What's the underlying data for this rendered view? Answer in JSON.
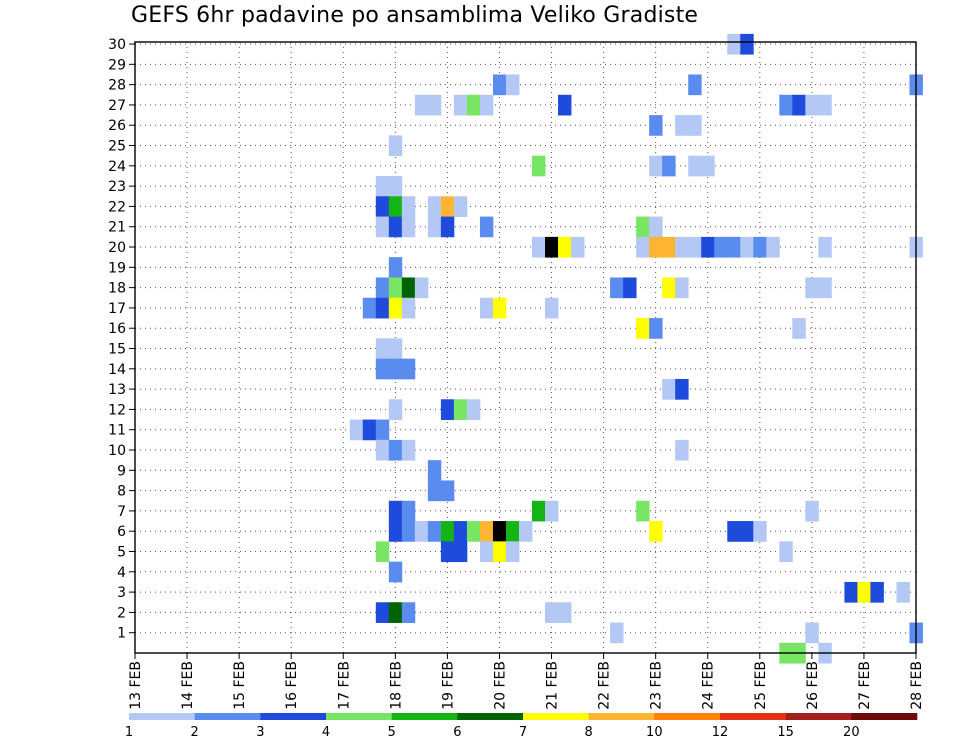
{
  "chart_data": {
    "type": "heatmap",
    "title": "GEFS 6hr padavine po ansamblima Veliko Gradiste",
    "x_tick_labels": [
      "13 FEB",
      "14 FEB",
      "15 FEB",
      "16 FEB",
      "17 FEB",
      "18 FEB",
      "19 FEB",
      "20 FEB",
      "21 FEB",
      "22 FEB",
      "23 FEB",
      "24 FEB",
      "25 FEB",
      "26 FEB",
      "27 FEB",
      "28 FEB"
    ],
    "y_tick_labels": [
      "1",
      "2",
      "3",
      "4",
      "5",
      "6",
      "7",
      "8",
      "9",
      "10",
      "11",
      "12",
      "13",
      "14",
      "15",
      "16",
      "17",
      "18",
      "19",
      "20",
      "21",
      "22",
      "23",
      "24",
      "25",
      "26",
      "27",
      "28",
      "29",
      "30"
    ],
    "xlim_days": [
      13,
      28
    ],
    "ylim_members": [
      0,
      30
    ],
    "time_step_hours": 6,
    "grid": "dotted",
    "legend": {
      "position": "bottom",
      "labels": [
        "1",
        "2",
        "3",
        "4",
        "5",
        "6",
        "7",
        "8",
        "10",
        "12",
        "15",
        "20"
      ],
      "colors": [
        "#b4c8f5",
        "#5a8cf0",
        "#1e4bdc",
        "#78e664",
        "#14b414",
        "#006400",
        "#ffff00",
        "#ffb432",
        "#ff8200",
        "#e63214",
        "#a51e1e",
        "#6e0a0a"
      ]
    },
    "cells": [
      {
        "member": 30,
        "x": [
          [
            24.5,
            1
          ],
          [
            24.75,
            3
          ]
        ]
      },
      {
        "member": 28,
        "x": [
          [
            20.0,
            2
          ],
          [
            20.25,
            1
          ],
          [
            23.75,
            2
          ],
          [
            28.0,
            2
          ]
        ]
      },
      {
        "member": 27,
        "x": [
          [
            18.5,
            1
          ],
          [
            18.75,
            1
          ],
          [
            19.25,
            1
          ],
          [
            19.5,
            4
          ],
          [
            19.75,
            1
          ],
          [
            21.25,
            3
          ],
          [
            25.5,
            2
          ],
          [
            25.75,
            3
          ],
          [
            26.0,
            1
          ],
          [
            26.25,
            1
          ]
        ]
      },
      {
        "member": 26,
        "x": [
          [
            23.0,
            2
          ],
          [
            23.5,
            1
          ],
          [
            23.75,
            1
          ]
        ]
      },
      {
        "member": 25,
        "x": [
          [
            18.0,
            1
          ]
        ]
      },
      {
        "member": 24,
        "x": [
          [
            20.75,
            4
          ],
          [
            23.0,
            1
          ],
          [
            23.25,
            2
          ],
          [
            23.75,
            1
          ],
          [
            24.0,
            1
          ]
        ]
      },
      {
        "member": 23,
        "x": [
          [
            17.75,
            1
          ],
          [
            18.0,
            1
          ]
        ]
      },
      {
        "member": 22,
        "x": [
          [
            17.75,
            3
          ],
          [
            18.0,
            5
          ],
          [
            18.25,
            1
          ],
          [
            18.75,
            1
          ],
          [
            19.0,
            8
          ],
          [
            19.25,
            1
          ]
        ]
      },
      {
        "member": 21,
        "x": [
          [
            17.75,
            1
          ],
          [
            18.0,
            3
          ],
          [
            18.25,
            1
          ],
          [
            18.75,
            1
          ],
          [
            19.0,
            3
          ],
          [
            19.75,
            2
          ],
          [
            22.75,
            4
          ],
          [
            23.0,
            1
          ]
        ]
      },
      {
        "member": 20,
        "x": [
          [
            20.75,
            1
          ],
          [
            21.0,
            15
          ],
          [
            21.25,
            7
          ],
          [
            21.5,
            1
          ],
          [
            22.75,
            1
          ],
          [
            23.0,
            8
          ],
          [
            23.25,
            8
          ],
          [
            23.5,
            1
          ],
          [
            23.75,
            1
          ],
          [
            24.0,
            3
          ],
          [
            24.25,
            2
          ],
          [
            24.5,
            2
          ],
          [
            24.75,
            1
          ],
          [
            25.0,
            2
          ],
          [
            25.25,
            1
          ],
          [
            26.25,
            1
          ],
          [
            28.0,
            1
          ]
        ]
      },
      {
        "member": 19,
        "x": [
          [
            18.0,
            2
          ]
        ]
      },
      {
        "member": 18,
        "x": [
          [
            17.75,
            2
          ],
          [
            18.0,
            4
          ],
          [
            18.25,
            6
          ],
          [
            18.5,
            1
          ],
          [
            22.25,
            2
          ],
          [
            22.5,
            3
          ],
          [
            23.25,
            7
          ],
          [
            23.5,
            1
          ],
          [
            26.0,
            1
          ],
          [
            26.25,
            1
          ]
        ]
      },
      {
        "member": 17,
        "x": [
          [
            17.5,
            2
          ],
          [
            17.75,
            3
          ],
          [
            18.0,
            7
          ],
          [
            18.25,
            1
          ],
          [
            19.75,
            1
          ],
          [
            20.0,
            7
          ],
          [
            21.0,
            1
          ]
        ]
      },
      {
        "member": 16,
        "x": [
          [
            22.75,
            7
          ],
          [
            23.0,
            2
          ],
          [
            25.75,
            1
          ]
        ]
      },
      {
        "member": 15,
        "x": [
          [
            17.75,
            1
          ],
          [
            18.0,
            1
          ]
        ]
      },
      {
        "member": 14,
        "x": [
          [
            17.75,
            2
          ],
          [
            18.0,
            2
          ],
          [
            18.25,
            2
          ]
        ]
      },
      {
        "member": 13,
        "x": [
          [
            23.25,
            1
          ],
          [
            23.5,
            3
          ]
        ]
      },
      {
        "member": 12,
        "x": [
          [
            18.0,
            1
          ],
          [
            19.0,
            3
          ],
          [
            19.25,
            4
          ],
          [
            19.5,
            1
          ]
        ]
      },
      {
        "member": 11,
        "x": [
          [
            17.25,
            1
          ],
          [
            17.5,
            3
          ],
          [
            17.75,
            2
          ]
        ]
      },
      {
        "member": 10,
        "x": [
          [
            17.75,
            1
          ],
          [
            18.0,
            2
          ],
          [
            18.25,
            1
          ],
          [
            23.5,
            1
          ]
        ]
      },
      {
        "member": 9,
        "x": [
          [
            18.75,
            2
          ]
        ]
      },
      {
        "member": 8,
        "x": [
          [
            18.75,
            2
          ],
          [
            19.0,
            2
          ]
        ]
      },
      {
        "member": 7,
        "x": [
          [
            18.0,
            3
          ],
          [
            18.25,
            2
          ],
          [
            20.75,
            5
          ],
          [
            21.0,
            1
          ],
          [
            22.75,
            4
          ],
          [
            26.0,
            1
          ]
        ]
      },
      {
        "member": 6,
        "x": [
          [
            18.0,
            3
          ],
          [
            18.25,
            2
          ],
          [
            18.5,
            1
          ],
          [
            18.75,
            2
          ],
          [
            19.0,
            5
          ],
          [
            19.25,
            3
          ],
          [
            19.5,
            4
          ],
          [
            19.75,
            8
          ],
          [
            20.0,
            15
          ],
          [
            20.25,
            5
          ],
          [
            20.5,
            1
          ],
          [
            23.0,
            7
          ],
          [
            24.5,
            3
          ],
          [
            24.75,
            3
          ],
          [
            25.0,
            1
          ]
        ]
      },
      {
        "member": 5,
        "x": [
          [
            17.75,
            4
          ],
          [
            19.0,
            3
          ],
          [
            19.25,
            3
          ],
          [
            19.75,
            1
          ],
          [
            20.0,
            7
          ],
          [
            20.25,
            1
          ],
          [
            25.5,
            1
          ]
        ]
      },
      {
        "member": 4,
        "x": [
          [
            18.0,
            2
          ]
        ]
      },
      {
        "member": 3,
        "x": [
          [
            26.75,
            3
          ],
          [
            27.0,
            7
          ],
          [
            27.25,
            3
          ],
          [
            27.75,
            1
          ]
        ]
      },
      {
        "member": 2,
        "x": [
          [
            17.75,
            3
          ],
          [
            18.0,
            6
          ],
          [
            18.25,
            2
          ],
          [
            21.0,
            1
          ],
          [
            21.25,
            1
          ]
        ]
      },
      {
        "member": 1,
        "x": [
          [
            22.25,
            1
          ],
          [
            26.0,
            1
          ],
          [
            28.0,
            2
          ]
        ]
      },
      {
        "member": 0,
        "x": [
          [
            25.5,
            4
          ],
          [
            25.75,
            4
          ],
          [
            26.25,
            1
          ]
        ]
      }
    ]
  }
}
